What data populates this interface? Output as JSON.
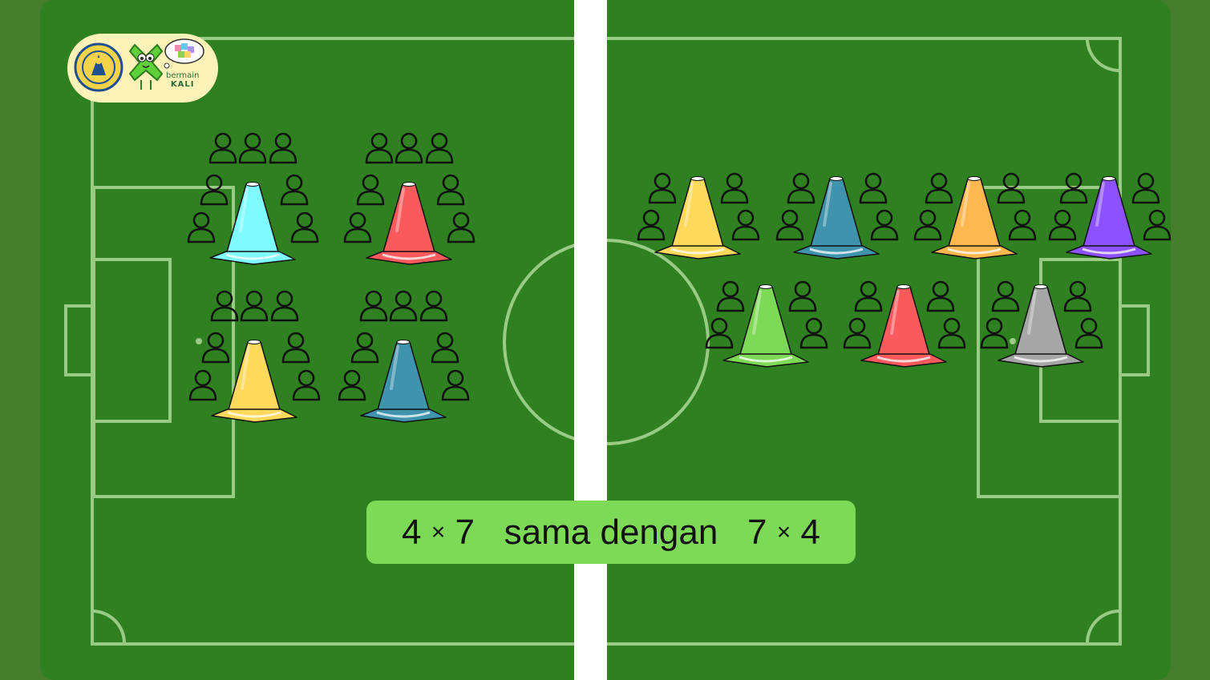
{
  "equation": {
    "left_factor": "4",
    "left_times": "×",
    "left_multiplier": "7",
    "connector": "sama dengan",
    "right_factor": "7",
    "right_times": "×",
    "right_multiplier": "4"
  },
  "brand": {
    "line1": "bermain",
    "line2": "KALI"
  },
  "colors": {
    "outer": "#467d2c",
    "pitch": "#2f8020",
    "lines": "#9acb85",
    "center_divider": "#ffffff",
    "equation_bg": "#7ed957",
    "logo_bg": "#fdf3b8"
  },
  "groups_left": {
    "count": 4,
    "people_per_group": 7,
    "cone_colors": [
      "#7ffcff",
      "#fb5a5d",
      "#ffd95b",
      "#3f93ad"
    ]
  },
  "groups_right": {
    "count": 7,
    "people_per_group": 4,
    "cone_colors": [
      "#ffd95b",
      "#3f93ad",
      "#ffb750",
      "#8c52ff",
      "#7ed957",
      "#fb5a5d",
      "#a6a6a6"
    ]
  }
}
